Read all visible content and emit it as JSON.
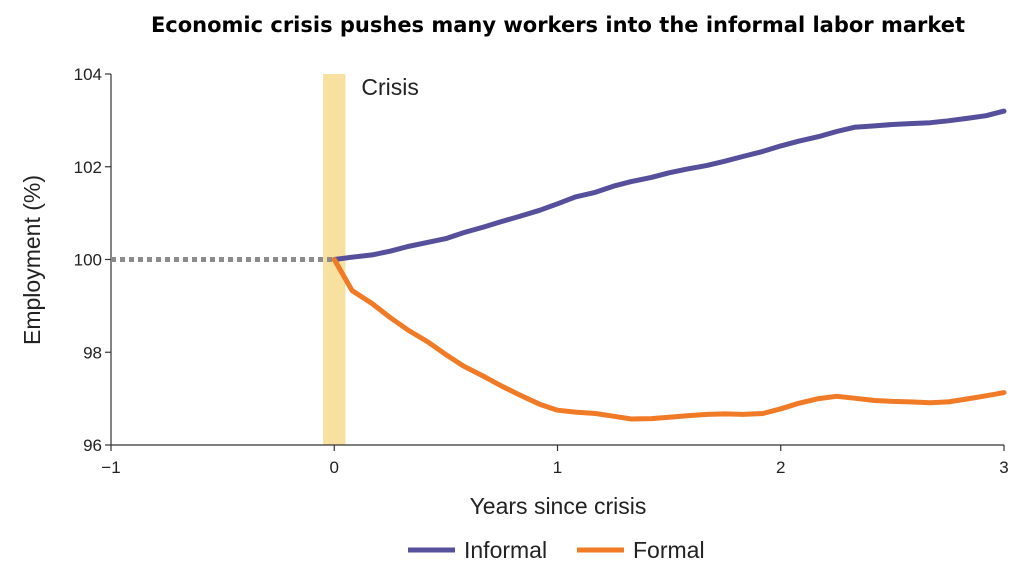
{
  "chart_data": {
    "type": "line",
    "title": "Economic crisis pushes many workers into the informal labor market",
    "xlabel": "Years since crisis",
    "ylabel": "Employment (%)",
    "xlim": [
      -1,
      3
    ],
    "ylim": [
      96,
      104
    ],
    "x_ticks": [
      -1,
      0,
      1,
      2,
      3
    ],
    "x_tick_labels": [
      "−1",
      "0",
      "1",
      "2",
      "3"
    ],
    "y_ticks": [
      96,
      98,
      100,
      102,
      104
    ],
    "grid": false,
    "legend_position": "bottom",
    "baseline": {
      "style": "dotted",
      "color": "#8c8c8c",
      "x": [
        -1,
        0
      ],
      "y": [
        100,
        100
      ]
    },
    "annotation": {
      "text": "Crisis",
      "band": [
        -0.05,
        0.05
      ],
      "band_color": "#f8e0a0"
    },
    "series": [
      {
        "name": "Informal",
        "color": "#554f9c",
        "x": [
          0,
          0.08,
          0.17,
          0.25,
          0.33,
          0.42,
          0.5,
          0.58,
          0.67,
          0.75,
          0.83,
          0.92,
          1.0,
          1.08,
          1.17,
          1.25,
          1.33,
          1.42,
          1.5,
          1.58,
          1.67,
          1.75,
          1.83,
          1.92,
          2.0,
          2.08,
          2.17,
          2.25,
          2.33,
          2.42,
          2.5,
          2.58,
          2.67,
          2.75,
          2.83,
          2.92,
          3.0
        ],
        "y": [
          100.0,
          100.05,
          100.1,
          100.18,
          100.28,
          100.37,
          100.45,
          100.58,
          100.7,
          100.82,
          100.93,
          101.06,
          101.2,
          101.35,
          101.45,
          101.58,
          101.68,
          101.77,
          101.87,
          101.95,
          102.03,
          102.12,
          102.22,
          102.33,
          102.45,
          102.55,
          102.65,
          102.76,
          102.85,
          102.88,
          102.91,
          102.93,
          102.95,
          102.99,
          103.04,
          103.1,
          103.2
        ]
      },
      {
        "name": "Formal",
        "color": "#f07a26",
        "x": [
          0,
          0.08,
          0.17,
          0.25,
          0.33,
          0.42,
          0.5,
          0.58,
          0.67,
          0.75,
          0.83,
          0.92,
          1.0,
          1.08,
          1.17,
          1.25,
          1.33,
          1.42,
          1.5,
          1.58,
          1.67,
          1.75,
          1.83,
          1.92,
          2.0,
          2.08,
          2.17,
          2.25,
          2.33,
          2.42,
          2.5,
          2.58,
          2.67,
          2.75,
          2.83,
          2.92,
          3.0
        ],
        "y": [
          100.0,
          99.33,
          99.05,
          98.75,
          98.48,
          98.22,
          97.95,
          97.7,
          97.48,
          97.27,
          97.08,
          96.88,
          96.75,
          96.71,
          96.68,
          96.62,
          96.56,
          96.57,
          96.6,
          96.63,
          96.66,
          96.67,
          96.66,
          96.68,
          96.78,
          96.9,
          97.0,
          97.05,
          97.01,
          96.96,
          96.94,
          96.93,
          96.91,
          96.93,
          96.99,
          97.06,
          97.13
        ]
      }
    ]
  }
}
